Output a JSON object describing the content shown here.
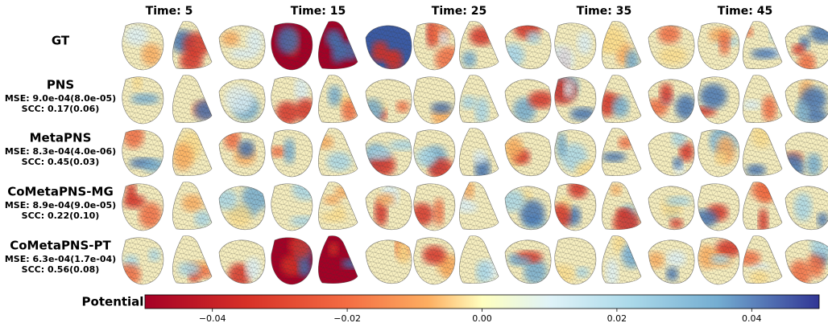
{
  "columns": [
    "Time: 5",
    "Time: 15",
    "Time: 25",
    "Time: 35",
    "Time: 45"
  ],
  "rows": [
    {
      "name": "GT"
    },
    {
      "name": "PNS",
      "mse": "MSE: 9.0e-04(8.0e-05)",
      "scc": "SCC: 0.17(0.06)"
    },
    {
      "name": "MetaPNS",
      "mse": "MSE: 8.3e-04(4.0e-06)",
      "scc": "SCC: 0.45(0.03)"
    },
    {
      "name": "CoMetaPNS-MG",
      "mse": "MSE: 8.9e-04(9.0e-05)",
      "scc": "SCC: 0.22(0.10)"
    },
    {
      "name": "CoMetaPNS-PT",
      "mse": "MSE: 6.3e-04(1.7e-04)",
      "scc": "SCC: 0.56(0.08)"
    }
  ],
  "colorbar": {
    "label": "Potential",
    "lim": [
      -0.05,
      0.05
    ],
    "ticks": [
      {
        "value": -0.04,
        "label": "−0.04"
      },
      {
        "value": -0.02,
        "label": "−0.02"
      },
      {
        "value": 0,
        "label": "0.00"
      },
      0.02,
      0.04
    ]
  }
}
